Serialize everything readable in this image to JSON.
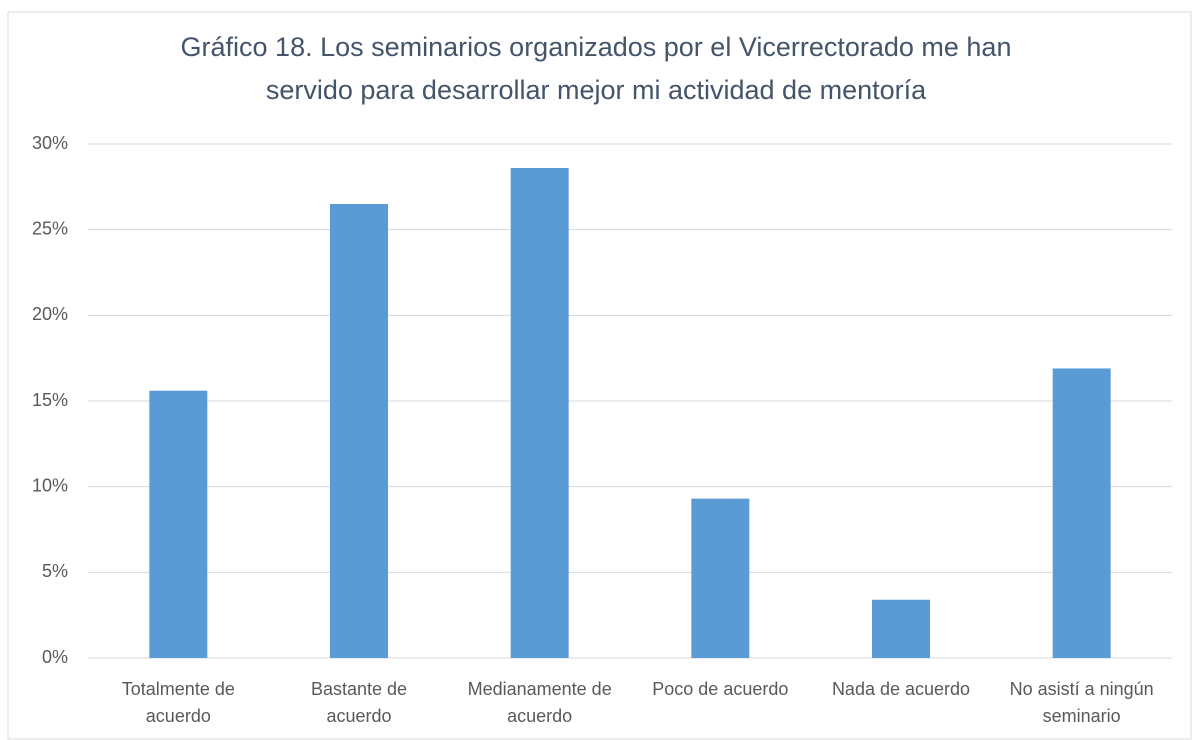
{
  "chart_data": {
    "type": "bar",
    "title": [
      "Gráfico 18. Los seminarios organizados por el Vicerrectorado me han",
      "servido para desarrollar mejor mi actividad de mentoría"
    ],
    "categories": [
      [
        "Totalmente de",
        "acuerdo"
      ],
      [
        "Bastante de",
        "acuerdo"
      ],
      [
        "Medianamente de",
        "acuerdo"
      ],
      [
        "Poco de acuerdo"
      ],
      [
        "Nada de acuerdo"
      ],
      [
        "No asistí a ningún",
        "seminario"
      ]
    ],
    "values": [
      15.6,
      26.5,
      28.6,
      9.3,
      3.4,
      16.9
    ],
    "color": "#5b9bd5",
    "ylim": [
      0,
      30
    ],
    "yticks": [
      {
        "value": 0,
        "label": "0%"
      },
      {
        "value": 5,
        "label": "5%"
      },
      {
        "value": 10,
        "label": "10%"
      },
      {
        "value": 15,
        "label": "15%"
      },
      {
        "value": 20,
        "label": "20%"
      },
      {
        "value": 25,
        "label": "25%"
      },
      {
        "value": 30,
        "label": "30%"
      }
    ],
    "grid": true
  }
}
